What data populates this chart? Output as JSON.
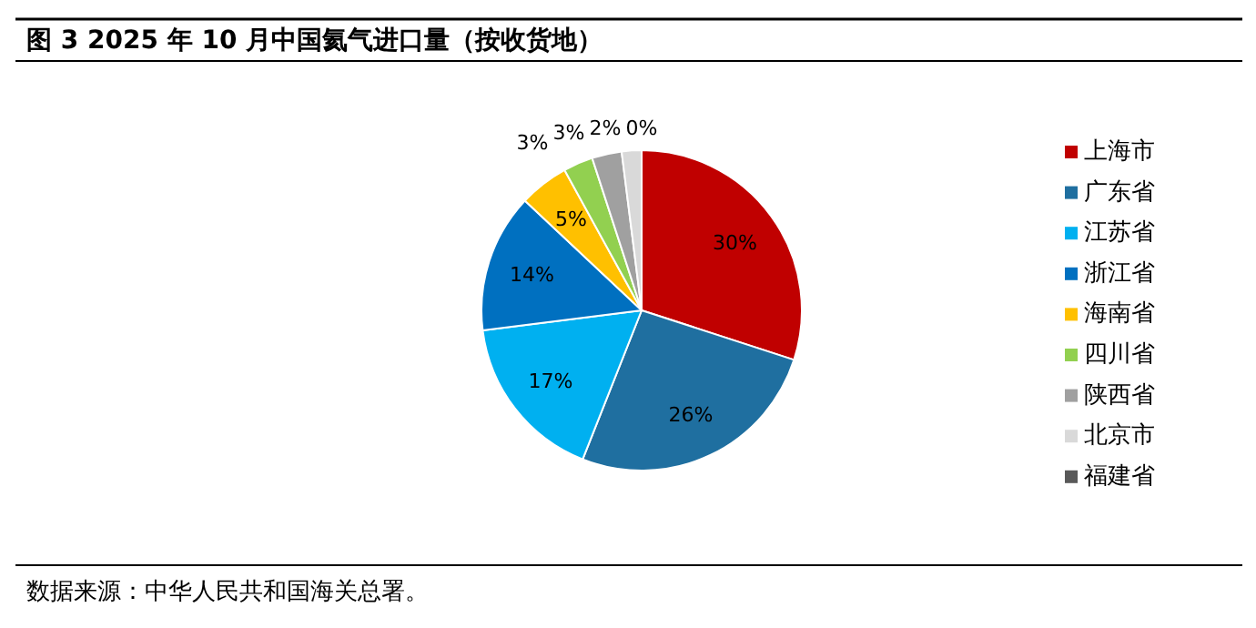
{
  "chart_data": {
    "type": "pie",
    "title": "图 3 2025 年 10 月中国氦气进口量（按收货地）",
    "categories": [
      "上海市",
      "广东省",
      "江苏省",
      "浙江省",
      "海南省",
      "四川省",
      "陕西省",
      "北京市",
      "福建省"
    ],
    "values": [
      30,
      26,
      17,
      14,
      5,
      3,
      3,
      2,
      0
    ],
    "colors": [
      "#c00000",
      "#1f6fa0",
      "#00b0f0",
      "#0070c0",
      "#ffc000",
      "#92d050",
      "#a0a0a0",
      "#d9d9d9",
      "#595959"
    ],
    "value_labels": [
      "30%",
      "26%",
      "17%",
      "14%",
      "5%",
      "3%",
      "3%",
      "2%",
      "0%"
    ],
    "legend": "right",
    "annotations": [
      "数据来源：中华人民共和国海关总署。"
    ]
  }
}
